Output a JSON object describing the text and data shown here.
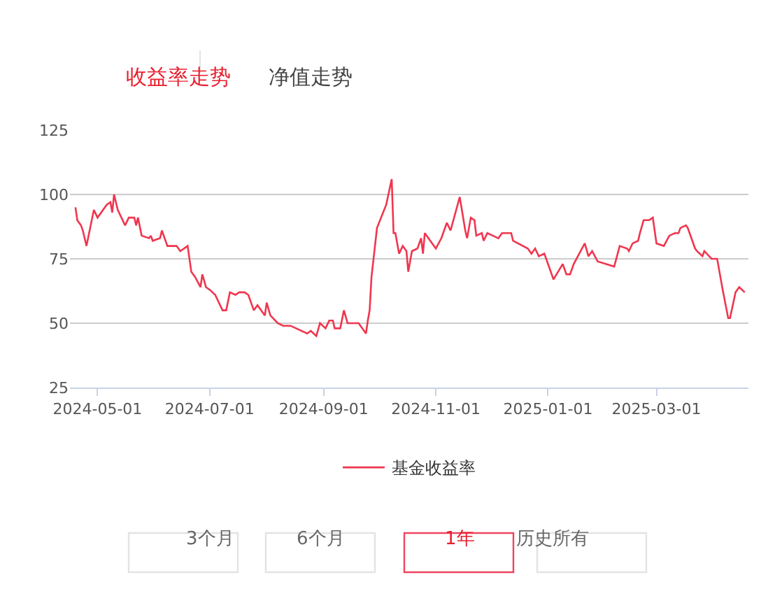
{
  "chart_data": {
    "type": "line",
    "legend": "bottom",
    "grid": "y",
    "marker": "none",
    "line_style": "solid",
    "xlim": [
      "2024-04-16",
      "2025-04-20"
    ],
    "ylim": [
      25,
      125
    ],
    "yticks": [
      25,
      50,
      75,
      100,
      125
    ],
    "xticks": [
      "2024-05-01",
      "2024-07-01",
      "2024-09-01",
      "2024-11-01",
      "2025-01-01",
      "2025-03-01"
    ],
    "annotations": [
      "收益率走势",
      "净值走势",
      "3个月",
      "6个月",
      "1年",
      "历史所有"
    ],
    "series": [
      {
        "name": "基金收益率",
        "color": "#f0364f",
        "x": [
          "2024-04-19",
          "2024-04-20",
          "2024-04-22",
          "2024-04-23",
          "2024-04-25",
          "2024-04-29",
          "2024-05-01",
          "2024-05-06",
          "2024-05-08",
          "2024-05-09",
          "2024-05-10",
          "2024-05-12",
          "2024-05-16",
          "2024-05-18",
          "2024-05-21",
          "2024-05-22",
          "2024-05-23",
          "2024-05-25",
          "2024-05-29",
          "2024-05-30",
          "2024-05-31",
          "2024-06-04",
          "2024-06-05",
          "2024-06-08",
          "2024-06-13",
          "2024-06-15",
          "2024-06-19",
          "2024-06-21",
          "2024-06-23",
          "2024-06-26",
          "2024-06-27",
          "2024-06-29",
          "2024-07-01",
          "2024-07-04",
          "2024-07-08",
          "2024-07-10",
          "2024-07-12",
          "2024-07-15",
          "2024-07-17",
          "2024-07-20",
          "2024-07-22",
          "2024-07-25",
          "2024-07-27",
          "2024-07-31",
          "2024-08-01",
          "2024-08-03",
          "2024-08-07",
          "2024-08-10",
          "2024-08-14",
          "2024-08-17",
          "2024-08-23",
          "2024-08-25",
          "2024-08-28",
          "2024-08-30",
          "2024-09-02",
          "2024-09-04",
          "2024-09-06",
          "2024-09-07",
          "2024-09-10",
          "2024-09-12",
          "2024-09-14",
          "2024-09-20",
          "2024-09-24",
          "2024-09-25",
          "2024-09-26",
          "2024-09-27",
          "2024-09-30",
          "2024-10-05",
          "2024-10-08",
          "2024-10-09",
          "2024-10-10",
          "2024-10-12",
          "2024-10-14",
          "2024-10-16",
          "2024-10-17",
          "2024-10-19",
          "2024-10-22",
          "2024-10-24",
          "2024-10-25",
          "2024-10-26",
          "2024-10-30",
          "2024-11-01",
          "2024-11-04",
          "2024-11-07",
          "2024-11-09",
          "2024-11-14",
          "2024-11-17",
          "2024-11-18",
          "2024-11-20",
          "2024-11-22",
          "2024-11-23",
          "2024-11-26",
          "2024-11-27",
          "2024-11-29",
          "2024-12-02",
          "2024-12-05",
          "2024-12-07",
          "2024-12-12",
          "2024-12-13",
          "2024-12-21",
          "2024-12-23",
          "2024-12-25",
          "2024-12-27",
          "2024-12-30",
          "2025-01-04",
          "2025-01-09",
          "2025-01-11",
          "2025-01-13",
          "2025-01-15",
          "2025-01-21",
          "2025-01-23",
          "2025-01-25",
          "2025-01-28",
          "2025-02-06",
          "2025-02-09",
          "2025-02-13",
          "2025-02-14",
          "2025-02-16",
          "2025-02-19",
          "2025-02-20",
          "2025-02-22",
          "2025-02-25",
          "2025-02-27",
          "2025-03-01",
          "2025-03-05",
          "2025-03-08",
          "2025-03-11",
          "2025-03-13",
          "2025-03-14",
          "2025-03-17",
          "2025-03-18",
          "2025-03-22",
          "2025-03-23",
          "2025-03-26",
          "2025-03-27",
          "2025-03-31",
          "2025-04-03",
          "2025-04-06",
          "2025-04-09",
          "2025-04-10",
          "2025-04-13",
          "2025-04-15",
          "2025-04-18"
        ],
        "values": [
          95,
          90,
          88,
          86,
          80,
          94,
          91,
          96,
          97,
          93,
          100,
          94,
          88,
          91,
          91,
          88,
          91,
          84,
          83,
          84,
          82,
          83,
          86,
          80,
          80,
          78,
          80,
          70,
          68,
          64,
          69,
          64,
          63,
          61,
          55,
          55,
          62,
          61,
          62,
          62,
          61,
          55,
          57,
          53,
          58,
          53,
          50,
          49,
          49,
          48,
          46,
          47,
          45,
          50,
          48,
          51,
          51,
          48,
          48,
          55,
          50,
          50,
          46,
          51,
          55,
          68,
          87,
          96,
          106,
          85,
          85,
          77,
          80,
          78,
          70,
          78,
          79,
          83,
          77,
          85,
          81,
          79,
          83,
          89,
          86,
          99,
          86,
          83,
          91,
          90,
          84,
          85,
          82,
          85,
          84,
          83,
          85,
          85,
          82,
          79,
          77,
          79,
          76,
          77,
          67,
          73,
          69,
          69,
          73,
          81,
          76,
          78,
          74,
          72,
          80,
          79,
          78,
          81,
          82,
          85,
          90,
          90,
          91,
          81,
          80,
          84,
          85,
          85,
          87,
          88,
          87,
          79,
          78,
          76,
          78,
          75,
          75,
          63,
          52,
          52,
          62,
          64,
          62
        ]
      }
    ]
  }
}
